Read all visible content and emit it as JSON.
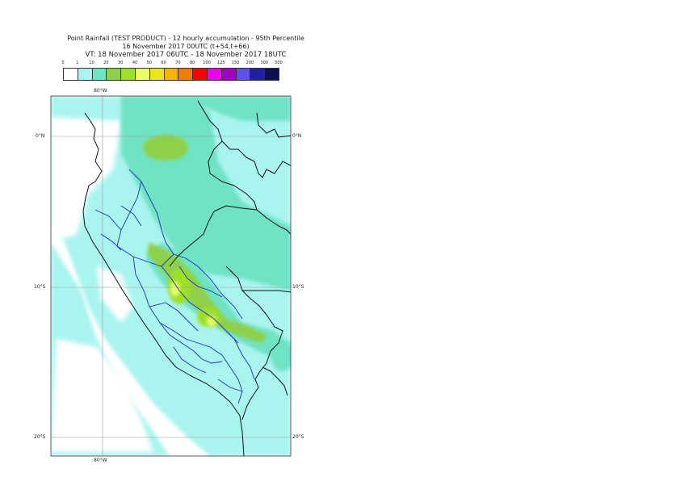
{
  "title": {
    "line1": "Point Rainfall (TEST PRODUCT) - 12 hourly accumulation - 95th Percentile",
    "line2": "16 November 2017 00UTC (t+54,t+66)",
    "line3": "VT: 18 November 2017 06UTC - 18 November 2017 18UTC"
  },
  "legend": {
    "ticks": [
      "0",
      "1",
      "10",
      "20",
      "30",
      "40",
      "50",
      "60",
      "70",
      "80",
      "100",
      "125",
      "150",
      "200",
      "300",
      "500"
    ],
    "colors": [
      "#ffffff",
      "#aaf4ef",
      "#6fe3c4",
      "#8fd04a",
      "#9ce02a",
      "#ecff66",
      "#e6e619",
      "#f4b400",
      "#f57c00",
      "#ff0000",
      "#ee00ee",
      "#a000c8",
      "#6050f0",
      "#2020a0",
      "#101050"
    ]
  },
  "axes": {
    "top_lon": "80°W",
    "bottom_lon": "80°W",
    "lat_left": [
      "0°N",
      "10°S",
      "20°S"
    ],
    "lat_right": [
      "0°N",
      "10°S",
      "20°S"
    ]
  }
}
